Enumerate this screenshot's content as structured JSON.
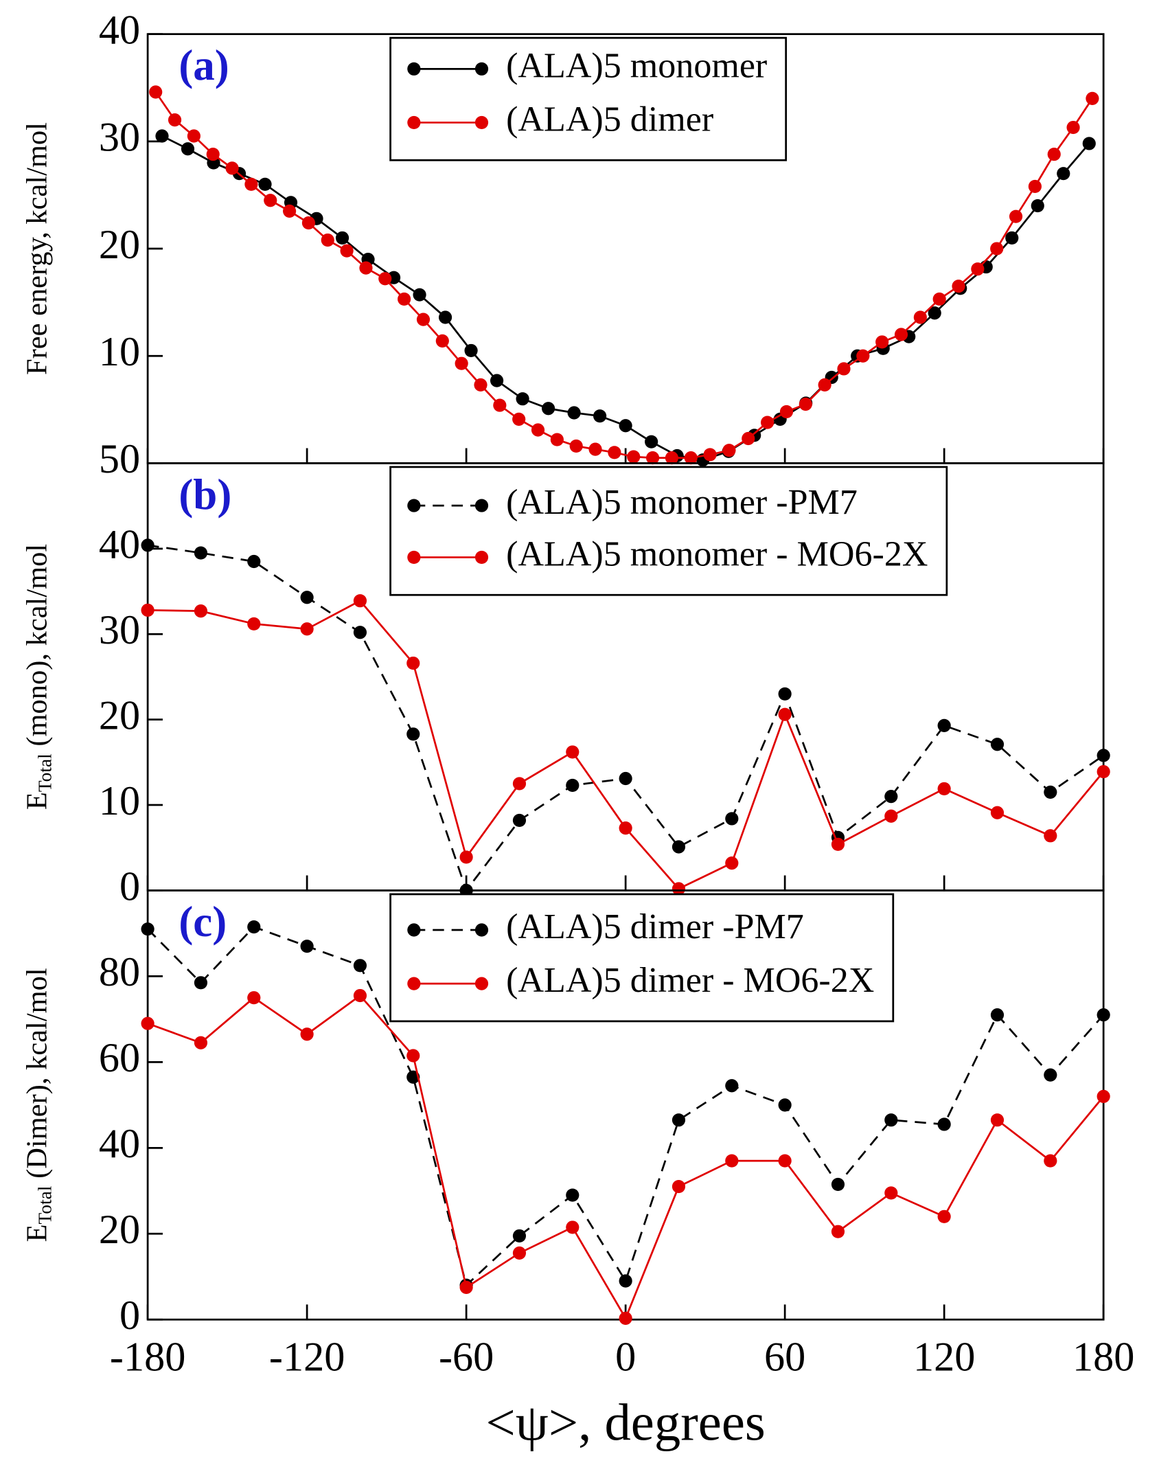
{
  "chart_data": [
    {
      "type": "line",
      "tag": "(a)",
      "ylabel": "Free energy, kcal/mol",
      "xlim": [
        -180,
        180
      ],
      "xticks": [
        -180,
        -120,
        -60,
        0,
        60,
        120,
        180
      ],
      "ylim": [
        0,
        40
      ],
      "yticks": [
        10,
        20,
        30,
        40
      ],
      "show_xtick_labels": false,
      "series": [
        {
          "name": "(ALA)5 monomer",
          "color": "#000000",
          "dashed": false,
          "x": [
            -174.6,
            -164.9,
            -155.2,
            -145.5,
            -135.8,
            -126.1,
            -116.4,
            -106.7,
            -97,
            -87.3,
            -77.6,
            -67.9,
            -58.2,
            -48.5,
            -38.8,
            -29.1,
            -19.4,
            -9.7,
            0,
            9.7,
            19.4,
            29.1,
            38.8,
            48.5,
            58.2,
            67.9,
            77.6,
            87.3,
            97,
            106.7,
            116.4,
            126.1,
            135.8,
            145.5,
            155.2,
            164.9,
            174.6
          ],
          "values": [
            30.5,
            29.3,
            28,
            27,
            26,
            24.3,
            22.8,
            21,
            19,
            17.3,
            15.7,
            13.6,
            10.5,
            7.7,
            6,
            5.1,
            4.7,
            4.4,
            3.5,
            2,
            0.7,
            0.3,
            1.1,
            2.6,
            4.1,
            5.6,
            8,
            10,
            10.7,
            11.8,
            14,
            16.3,
            18.3,
            21,
            24,
            27,
            29.8
          ]
        },
        {
          "name": "(ALA)5 dimer",
          "color": "#e00000",
          "dashed": false,
          "x": [
            -177,
            -169.8,
            -162.6,
            -155.4,
            -148.2,
            -141,
            -133.8,
            -126.6,
            -119.4,
            -112.2,
            -105,
            -97.8,
            -90.6,
            -83.4,
            -76.2,
            -69,
            -61.8,
            -54.6,
            -47.4,
            -40.2,
            -33,
            -25.8,
            -18.6,
            -11.4,
            -4.2,
            3,
            10.2,
            17.4,
            24.6,
            31.8,
            39,
            46.2,
            53.4,
            60.6,
            67.8,
            75,
            82.2,
            89.4,
            96.6,
            103.8,
            111,
            118.2,
            125.4,
            132.6,
            139.8,
            147,
            154.2,
            161.4,
            168.6,
            175.8
          ],
          "values": [
            34.6,
            32,
            30.5,
            28.8,
            27.5,
            26,
            24.5,
            23.5,
            22.4,
            20.8,
            19.8,
            18.2,
            17.2,
            15.3,
            13.4,
            11.4,
            9.3,
            7.3,
            5.4,
            4.1,
            3.1,
            2.2,
            1.6,
            1.3,
            1,
            0.6,
            0.5,
            0.5,
            0.5,
            0.8,
            1.2,
            2.3,
            3.8,
            4.8,
            5.5,
            7.3,
            8.8,
            10,
            11.3,
            12,
            13.6,
            15.3,
            16.5,
            18.1,
            20,
            23,
            25.8,
            28.8,
            31.3,
            34
          ]
        }
      ]
    },
    {
      "type": "line",
      "tag": "(b)",
      "ylabel": {
        "main": "E",
        "sub": "Total",
        "rest": " (mono), kcal/mol"
      },
      "xlim": [
        -180,
        180
      ],
      "xticks": [
        -180,
        -120,
        -60,
        0,
        60,
        120,
        180
      ],
      "ylim": [
        0,
        50
      ],
      "yticks": [
        0,
        10,
        20,
        30,
        40,
        50
      ],
      "show_xtick_labels": false,
      "x": [
        -180,
        -160,
        -140,
        -120,
        -100,
        -80,
        -60,
        -40,
        -20,
        0,
        20,
        40,
        60,
        80,
        100,
        120,
        140,
        160,
        180
      ],
      "series": [
        {
          "name": "(ALA)5 monomer -PM7",
          "color": "#000000",
          "dashed": true,
          "values": [
            40.4,
            39.5,
            38.5,
            34.3,
            30.2,
            18.3,
            0,
            8.2,
            12.3,
            13.1,
            5.1,
            8.4,
            23,
            6.2,
            11,
            19.3,
            17.1,
            11.5,
            15.8
          ]
        },
        {
          "name": "(ALA)5 monomer - MO6-2X",
          "color": "#e00000",
          "dashed": false,
          "values": [
            32.8,
            32.7,
            31.2,
            30.6,
            33.9,
            26.6,
            3.9,
            12.5,
            16.2,
            7.3,
            0.2,
            3.2,
            20.6,
            5.4,
            8.7,
            11.9,
            9.1,
            6.4,
            13.9
          ]
        }
      ]
    },
    {
      "type": "line",
      "tag": "(c)",
      "ylabel": {
        "main": "E",
        "sub": "Total",
        "rest": " (Dimer), kcal/mol"
      },
      "xlabel": "<ψ>, degrees",
      "xlim": [
        -180,
        180
      ],
      "xticks": [
        -180,
        -120,
        -60,
        0,
        60,
        120,
        180
      ],
      "ylim": [
        0,
        100
      ],
      "yticks": [
        0,
        20,
        40,
        60,
        80
      ],
      "show_xtick_labels": true,
      "x": [
        -180,
        -160,
        -140,
        -120,
        -100,
        -80,
        -60,
        -40,
        -20,
        0,
        20,
        40,
        60,
        80,
        100,
        120,
        140,
        160,
        180
      ],
      "series": [
        {
          "name": "(ALA)5 dimer -PM7",
          "color": "#000000",
          "dashed": true,
          "values": [
            91,
            78.5,
            91.5,
            87,
            82.5,
            56.5,
            8,
            19.5,
            29,
            9,
            46.5,
            54.5,
            50,
            31.5,
            46.5,
            45.5,
            71,
            57,
            71
          ]
        },
        {
          "name": "(ALA)5 dimer - MO6-2X",
          "color": "#e00000",
          "dashed": false,
          "values": [
            69,
            64.5,
            75,
            66.5,
            75.5,
            61.5,
            7.5,
            15.5,
            21.5,
            0.3,
            31,
            37,
            37,
            20.5,
            29.5,
            24,
            46.5,
            37,
            52
          ]
        }
      ]
    }
  ]
}
